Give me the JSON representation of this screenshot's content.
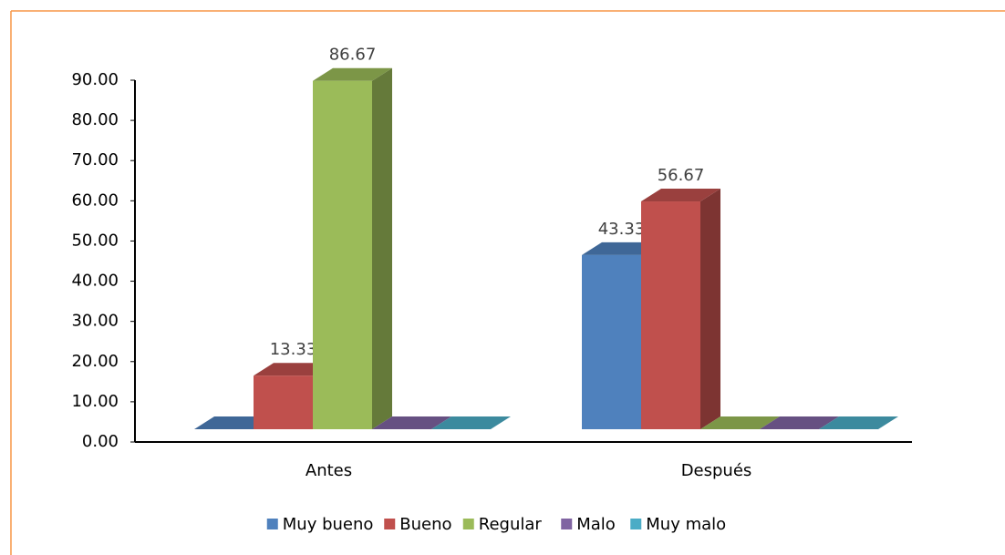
{
  "chart_data": {
    "type": "bar3d",
    "categories": [
      "Antes",
      "Después"
    ],
    "series": [
      {
        "name": "Muy bueno",
        "color": "#4f81bd",
        "values": [
          0,
          43.33
        ]
      },
      {
        "name": "Bueno",
        "color": "#c0504d",
        "values": [
          13.33,
          56.67
        ]
      },
      {
        "name": "Regular",
        "color": "#9bbb59",
        "values": [
          86.67,
          0
        ]
      },
      {
        "name": "Malo",
        "color": "#8064a2",
        "values": [
          0,
          0
        ]
      },
      {
        "name": "Muy malo",
        "color": "#4bacc6",
        "values": [
          0,
          0
        ]
      }
    ],
    "ylim": [
      0,
      90
    ],
    "yticks": [
      {
        "value": 0,
        "label": "0.00"
      },
      {
        "value": 10,
        "label": "10.00"
      },
      {
        "value": 20,
        "label": "20.00"
      },
      {
        "value": 30,
        "label": "30.00"
      },
      {
        "value": 40,
        "label": "40.00"
      },
      {
        "value": 50,
        "label": "50.00"
      },
      {
        "value": 60,
        "label": "60.00"
      },
      {
        "value": 70,
        "label": "70.00"
      },
      {
        "value": 80,
        "label": "80.00"
      },
      {
        "value": 90,
        "label": "90.00"
      }
    ],
    "legend": "bottom"
  }
}
